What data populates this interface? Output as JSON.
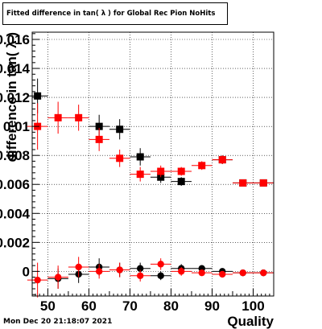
{
  "page": {
    "timestamp": "Mon Dec 20 21:18:07 2021"
  },
  "chart_data": {
    "type": "scatter",
    "title": "Fitted difference in tan( λ ) for Global Rec Pion NoHits",
    "xlabel": "Quality",
    "ylabel": "difference in tan( λ )",
    "xlim": [
      46.2,
      105
    ],
    "ylim": [
      -0.0017,
      0.0165
    ],
    "grid": true,
    "x_ticks": [
      50,
      60,
      70,
      80,
      90,
      100
    ],
    "x_tick_labels": [
      "50",
      "60",
      "70",
      "80",
      "90",
      "100"
    ],
    "y_ticks": [
      0,
      0.002,
      0.004,
      0.006,
      0.008,
      0.01,
      0.012,
      0.014,
      0.016
    ],
    "y_tick_labels": [
      "0",
      "0.002",
      "0.004",
      "0.006",
      "0.008",
      "0.01",
      "0.012",
      "0.014",
      "0.016"
    ],
    "series": [
      {
        "color": "#000000",
        "marker": "square",
        "points": [
          {
            "x": 47.5,
            "y": 0.0121,
            "xerr": 2.5,
            "yerr": 0.0012
          },
          {
            "x": 62.5,
            "y": 0.01,
            "xerr": 2.5,
            "yerr": 0.0008
          },
          {
            "x": 67.5,
            "y": 0.0098,
            "xerr": 2.5,
            "yerr": 0.0007
          },
          {
            "x": 72.5,
            "y": 0.0079,
            "xerr": 2.5,
            "yerr": 0.0006
          },
          {
            "x": 77.5,
            "y": 0.0065,
            "xerr": 2.5,
            "yerr": 0.0004
          },
          {
            "x": 82.5,
            "y": 0.0062,
            "xerr": 2.5,
            "yerr": 0.0003
          },
          {
            "x": 92.5,
            "y": 0.0077,
            "xerr": 2.5,
            "yerr": 0.0003
          },
          {
            "x": 97.5,
            "y": 0.0061,
            "xerr": 2.5,
            "yerr": 0.0002
          },
          {
            "x": 102.5,
            "y": 0.0061,
            "xerr": 2.5,
            "yerr": 0.0002
          }
        ]
      },
      {
        "color": "#ff0000",
        "marker": "square",
        "points": [
          {
            "x": 47.5,
            "y": 0.01,
            "xerr": 2.5,
            "yerr": 0.0016
          },
          {
            "x": 52.5,
            "y": 0.0106,
            "xerr": 2.5,
            "yerr": 0.0011
          },
          {
            "x": 57.5,
            "y": 0.0106,
            "xerr": 2.5,
            "yerr": 0.0009
          },
          {
            "x": 62.5,
            "y": 0.0091,
            "xerr": 2.5,
            "yerr": 0.0008
          },
          {
            "x": 67.5,
            "y": 0.0078,
            "xerr": 2.5,
            "yerr": 0.0006
          },
          {
            "x": 72.5,
            "y": 0.0067,
            "xerr": 2.5,
            "yerr": 0.0005
          },
          {
            "x": 77.5,
            "y": 0.0069,
            "xerr": 2.5,
            "yerr": 0.0004
          },
          {
            "x": 82.5,
            "y": 0.0069,
            "xerr": 2.5,
            "yerr": 0.0003
          },
          {
            "x": 87.5,
            "y": 0.0073,
            "xerr": 2.5,
            "yerr": 0.0003
          },
          {
            "x": 92.5,
            "y": 0.0077,
            "xerr": 2.5,
            "yerr": 0.0003
          },
          {
            "x": 97.5,
            "y": 0.0061,
            "xerr": 2.5,
            "yerr": 0.0002
          },
          {
            "x": 102.5,
            "y": 0.0061,
            "xerr": 2.5,
            "yerr": 0.0002
          }
        ]
      },
      {
        "color": "#000000",
        "marker": "circle",
        "points": [
          {
            "x": 52.5,
            "y": -0.0005,
            "xerr": 2.5,
            "yerr": 0.0007
          },
          {
            "x": 57.5,
            "y": -0.0002,
            "xerr": 2.5,
            "yerr": 0.0006
          },
          {
            "x": 62.5,
            "y": 0.0003,
            "xerr": 2.5,
            "yerr": 0.0006
          },
          {
            "x": 67.5,
            "y": 0.0001,
            "xerr": 2.5,
            "yerr": 0.0005
          },
          {
            "x": 72.5,
            "y": 0.0002,
            "xerr": 2.5,
            "yerr": 0.0004
          },
          {
            "x": 77.5,
            "y": -0.0003,
            "xerr": 2.5,
            "yerr": 0.0003
          },
          {
            "x": 82.5,
            "y": 0.0002,
            "xerr": 2.5,
            "yerr": 0.0003
          },
          {
            "x": 87.5,
            "y": 0.0002,
            "xerr": 2.5,
            "yerr": 0.0002
          },
          {
            "x": 92.5,
            "y": 0.0,
            "xerr": 2.5,
            "yerr": 0.0002
          },
          {
            "x": 97.5,
            "y": -0.0001,
            "xerr": 2.5,
            "yerr": 0.0001
          },
          {
            "x": 102.5,
            "y": -0.0001,
            "xerr": 2.5,
            "yerr": 0.0001
          }
        ]
      },
      {
        "color": "#ff0000",
        "marker": "circle",
        "points": [
          {
            "x": 47.5,
            "y": -0.0006,
            "xerr": 2.5,
            "yerr": 0.0012
          },
          {
            "x": 52.5,
            "y": -0.0004,
            "xerr": 2.5,
            "yerr": 0.0008
          },
          {
            "x": 57.5,
            "y": 0.0003,
            "xerr": 2.5,
            "yerr": 0.0007
          },
          {
            "x": 62.5,
            "y": 0.0,
            "xerr": 2.5,
            "yerr": 0.0005
          },
          {
            "x": 67.5,
            "y": 0.0001,
            "xerr": 2.5,
            "yerr": 0.0005
          },
          {
            "x": 72.5,
            "y": -0.0003,
            "xerr": 2.5,
            "yerr": 0.0004
          },
          {
            "x": 77.5,
            "y": 0.0005,
            "xerr": 2.5,
            "yerr": 0.0004
          },
          {
            "x": 82.5,
            "y": 0.0,
            "xerr": 2.5,
            "yerr": 0.0003
          },
          {
            "x": 87.5,
            "y": -0.0001,
            "xerr": 2.5,
            "yerr": 0.0002
          },
          {
            "x": 92.5,
            "y": -0.0002,
            "xerr": 2.5,
            "yerr": 0.0002
          },
          {
            "x": 97.5,
            "y": -0.0001,
            "xerr": 2.5,
            "yerr": 0.0001
          },
          {
            "x": 102.5,
            "y": -0.0001,
            "xerr": 2.5,
            "yerr": 0.0001
          }
        ]
      }
    ]
  }
}
